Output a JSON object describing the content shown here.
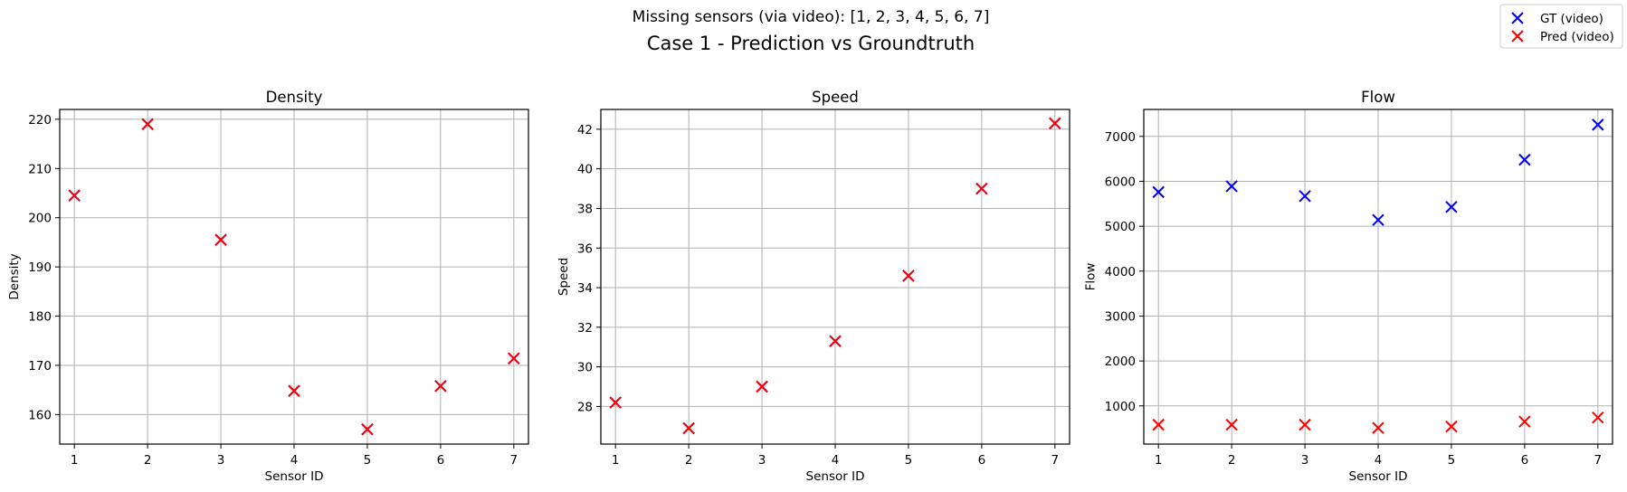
{
  "figure": {
    "suptitle": "Missing sensors (via video): [1, 2, 3, 4, 5, 6, 7]",
    "title": "Case 1 - Prediction vs Groundtruth"
  },
  "legend": {
    "placement": "top-right",
    "entries": [
      {
        "label": "GT (video)",
        "color": "#0000ff",
        "marker": "x"
      },
      {
        "label": "Pred (video)",
        "color": "#ff0000",
        "marker": "x"
      }
    ]
  },
  "chart_data": [
    {
      "type": "scatter",
      "title": "Density",
      "xlabel": "Sensor ID",
      "ylabel": "Density",
      "grid": true,
      "x": [
        1,
        2,
        3,
        4,
        5,
        6,
        7
      ],
      "xlim": [
        0.8,
        7.2
      ],
      "ylim": [
        154,
        222
      ],
      "yticks": [
        160,
        170,
        180,
        190,
        200,
        210,
        220
      ],
      "series": [
        {
          "name": "GT (video)",
          "color": "#0000ff",
          "values": [
            204.5,
            219.0,
            195.5,
            164.8,
            157.0,
            165.8,
            171.4
          ]
        },
        {
          "name": "Pred (video)",
          "color": "#ff0000",
          "values": [
            204.5,
            219.0,
            195.5,
            164.8,
            157.0,
            165.8,
            171.4
          ]
        }
      ]
    },
    {
      "type": "scatter",
      "title": "Speed",
      "xlabel": "Sensor ID",
      "ylabel": "Speed",
      "grid": true,
      "x": [
        1,
        2,
        3,
        4,
        5,
        6,
        7
      ],
      "xlim": [
        0.8,
        7.2
      ],
      "ylim": [
        26.1,
        43.0
      ],
      "yticks": [
        28,
        30,
        32,
        34,
        36,
        38,
        40,
        42
      ],
      "series": [
        {
          "name": "GT (video)",
          "color": "#0000ff",
          "values": [
            28.2,
            26.9,
            29.0,
            31.3,
            34.6,
            39.0,
            42.3
          ]
        },
        {
          "name": "Pred (video)",
          "color": "#ff0000",
          "values": [
            28.2,
            26.9,
            29.0,
            31.3,
            34.6,
            39.0,
            42.3
          ]
        }
      ]
    },
    {
      "type": "scatter",
      "title": "Flow",
      "xlabel": "Sensor ID",
      "ylabel": "Flow",
      "grid": true,
      "x": [
        1,
        2,
        3,
        4,
        5,
        6,
        7
      ],
      "xlim": [
        0.8,
        7.2
      ],
      "ylim": [
        150,
        7600
      ],
      "yticks": [
        1000,
        2000,
        3000,
        4000,
        5000,
        6000,
        7000
      ],
      "series": [
        {
          "name": "GT (video)",
          "color": "#0000ff",
          "values": [
            5760,
            5890,
            5670,
            5140,
            5430,
            6480,
            7260
          ]
        },
        {
          "name": "Pred (video)",
          "color": "#ff0000",
          "values": [
            580,
            580,
            580,
            510,
            540,
            650,
            740
          ]
        }
      ]
    }
  ]
}
